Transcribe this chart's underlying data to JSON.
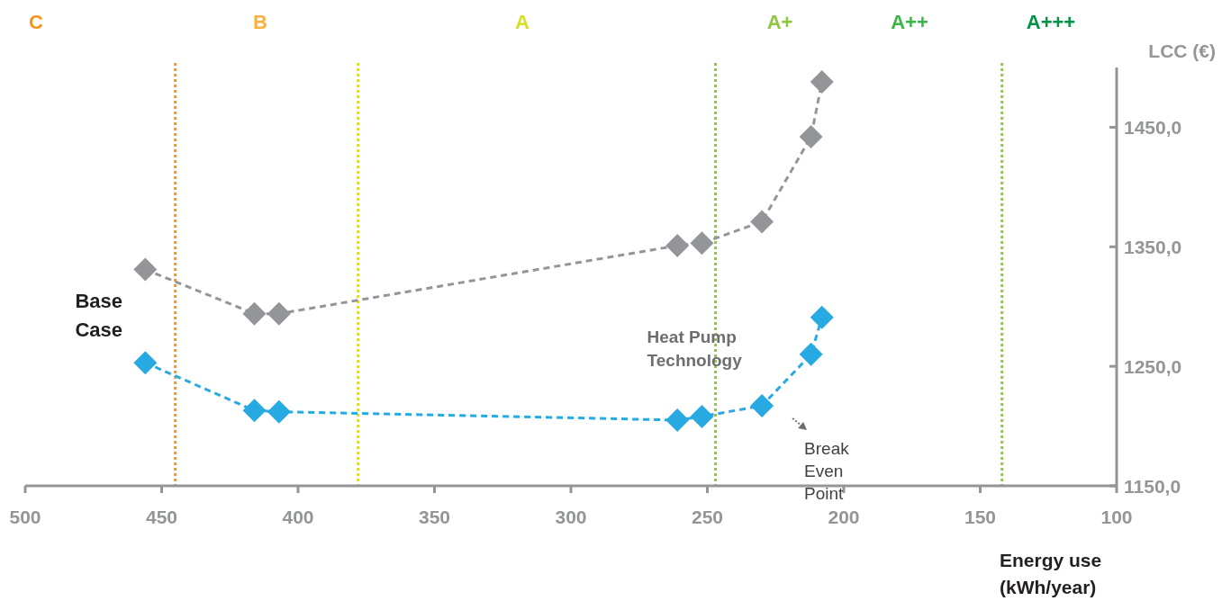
{
  "chart_data": {
    "type": "line",
    "xlabel": "Energy use (kWh/year)",
    "ylabel": "LCC (€)",
    "xlim": [
      500,
      100
    ],
    "xticks": [
      500,
      450,
      400,
      350,
      300,
      250,
      200,
      150,
      100
    ],
    "ylim": [
      1150,
      1500
    ],
    "yticks": [
      {
        "value": 1150,
        "label": "1150,0"
      },
      {
        "value": 1250,
        "label": "1250,0"
      },
      {
        "value": 1350,
        "label": "1350,0"
      },
      {
        "value": 1450,
        "label": "1450,0"
      }
    ],
    "marker": "diamond",
    "line_style": "dashed",
    "grid": false,
    "series": [
      {
        "color": "#939598",
        "x": [
          456,
          416,
          407,
          261,
          252,
          230,
          212,
          208
        ],
        "values": [
          1331,
          1294,
          1294,
          1351,
          1353,
          1371,
          1442,
          1488
        ]
      },
      {
        "color": "#27a9e1",
        "x": [
          456,
          416,
          407,
          261,
          252,
          230,
          212,
          208
        ],
        "values": [
          1253,
          1213,
          1212,
          1205,
          1208,
          1217,
          1260,
          1291
        ]
      }
    ],
    "ref_lines": [
      {
        "axis": "x",
        "value": 445,
        "color": "#f7941d",
        "line_style": "dotted"
      },
      {
        "axis": "x",
        "value": 378,
        "color": "#d7df23",
        "line_style": "dotted"
      },
      {
        "axis": "x",
        "value": 247,
        "color": "#8dc63f",
        "line_style": "dotted"
      },
      {
        "axis": "x",
        "value": 142,
        "color": "#8dc63f",
        "line_style": "dotted"
      }
    ],
    "annotations": [
      "C",
      "B",
      "A",
      "A+",
      "A++",
      "A+++",
      "Base Case",
      "Heat Pump Technology",
      "Break Even Point"
    ]
  }
}
